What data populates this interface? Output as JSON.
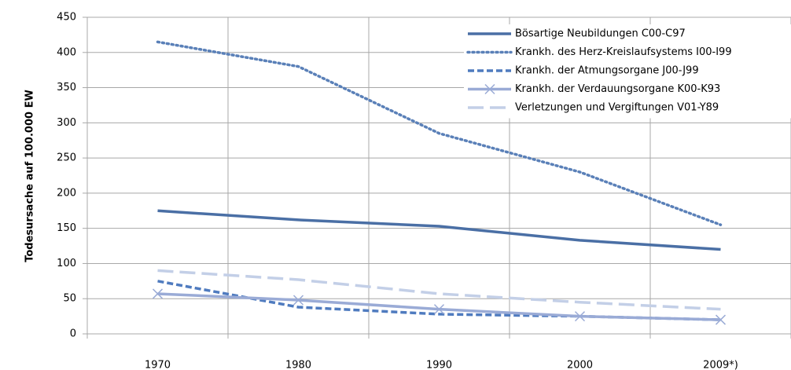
{
  "chart_data": {
    "type": "line",
    "ylabel": "Todesursache auf 100.000  EW",
    "categories": [
      "1970",
      "1980",
      "1990",
      "2000",
      "2009*)"
    ],
    "series": [
      {
        "name": "Bösartige Neubildungen C00-C97",
        "color": "#4a6fa5",
        "style": "solid",
        "values": [
          175,
          162,
          153,
          133,
          120
        ]
      },
      {
        "name": "Krankh. des Herz-Kreislaufsystems I00-I99",
        "color": "#5a80b8",
        "style": "dotted",
        "values": [
          415,
          380,
          285,
          230,
          155
        ]
      },
      {
        "name": "Krankh. der Atmungsorgane J00-J99",
        "color": "#4f7bbf",
        "style": "dashed",
        "values": [
          75,
          38,
          28,
          25,
          20
        ]
      },
      {
        "name": "Krankh. der Verdauungsorgane K00-K93",
        "color": "#9aabd6",
        "style": "solid",
        "marker": "x",
        "values": [
          57,
          48,
          35,
          25,
          20
        ]
      },
      {
        "name": "Verletzungen und Vergiftungen V01-Y89",
        "color": "#c3cfe7",
        "style": "longdash",
        "values": [
          90,
          77,
          57,
          45,
          35
        ]
      }
    ],
    "ylim": [
      0,
      450
    ],
    "yticks": [
      0,
      50,
      100,
      150,
      200,
      250,
      300,
      350,
      400,
      450
    ],
    "grid": true,
    "legend": "upper right"
  }
}
